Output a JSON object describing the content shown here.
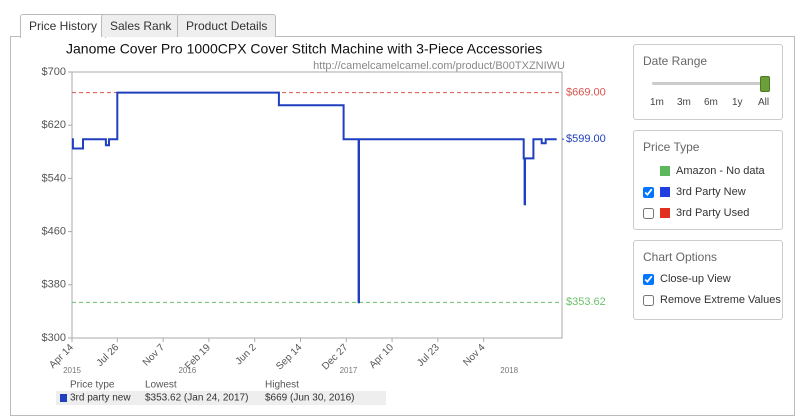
{
  "tabs": [
    "Price History",
    "Sales Rank",
    "Product Details"
  ],
  "chart_data": {
    "type": "line",
    "title": "Janome Cover Pro 1000CPX Cover Stitch Machine with 3-Piece Accessories",
    "subtitle": "http://camelcamelcamel.com/product/B00TXZNIWU",
    "xlim": [
      "2015-04-14",
      "2018-05-01"
    ],
    "xticks": [
      {
        "value": "2015-04-14",
        "label": "Apr 14"
      },
      {
        "value": "2015-07-26",
        "label": "Jul 26"
      },
      {
        "value": "2015-11-07",
        "label": "Nov 7"
      },
      {
        "value": "2016-02-19",
        "label": "Feb 19"
      },
      {
        "value": "2016-06-02",
        "label": "Jun 2"
      },
      {
        "value": "2016-09-14",
        "label": "Sep 14"
      },
      {
        "value": "2016-12-27",
        "label": "Dec 27"
      },
      {
        "value": "2017-04-10",
        "label": "Apr 10"
      },
      {
        "value": "2017-07-23",
        "label": "Jul 23"
      },
      {
        "value": "2017-11-04",
        "label": "Nov 4"
      }
    ],
    "year_labels": [
      {
        "value": "2015-04-14",
        "label": "2015"
      },
      {
        "value": "2016-01-01",
        "label": "2016"
      },
      {
        "value": "2017-01-01",
        "label": "2017"
      },
      {
        "value": "2018-01-01",
        "label": "2018"
      }
    ],
    "ylim": [
      300,
      700
    ],
    "yticks": [
      {
        "value": 700,
        "label": "$700"
      },
      {
        "value": 620,
        "label": "$620"
      },
      {
        "value": 540,
        "label": "$540"
      },
      {
        "value": 460,
        "label": "$460"
      },
      {
        "value": 380,
        "label": "$380"
      },
      {
        "value": 300,
        "label": "$300"
      }
    ],
    "reference_lines": [
      {
        "value": 669,
        "label": "$669.00",
        "color": "#d9534f"
      },
      {
        "value": 599,
        "label": "$599.00",
        "color": "#1f3fbf"
      },
      {
        "value": 353.62,
        "label": "$353.62",
        "color": "#6cc06c"
      }
    ],
    "series": [
      {
        "name": "3rd party new",
        "color": "#1f3fbf",
        "x": [
          "2015-04-14",
          "2015-04-16",
          "2015-04-16",
          "2015-05-09",
          "2015-05-09",
          "2015-06-30",
          "2015-06-30",
          "2015-07-07",
          "2015-07-07",
          "2015-07-26",
          "2015-07-26",
          "2016-07-27",
          "2016-07-27",
          "2016-12-21",
          "2016-12-21",
          "2017-01-24",
          "2017-01-24",
          "2017-01-25",
          "2017-01-25",
          "2018-02-03",
          "2018-02-03",
          "2018-02-05",
          "2018-02-05",
          "2018-02-06",
          "2018-02-06",
          "2018-02-25",
          "2018-02-25",
          "2018-03-16",
          "2018-03-16",
          "2018-03-25",
          "2018-03-25",
          "2018-04-19"
        ],
        "values": [
          599,
          599,
          585,
          585,
          599,
          599,
          590,
          590,
          599,
          599,
          669,
          669,
          650,
          650,
          599,
          599,
          353.62,
          353.62,
          599,
          599,
          570,
          570,
          501,
          501,
          570,
          570,
          599,
          599,
          593,
          593,
          599,
          599
        ]
      }
    ],
    "summary": {
      "headers": [
        "Price type",
        "Lowest",
        "Highest"
      ],
      "row": [
        "3rd party new",
        "$353.62 (Jan 24, 2017)",
        "$669 (Jun 30, 2016)"
      ]
    }
  },
  "sidebar": {
    "date_range": {
      "title": "Date Range",
      "options": [
        "1m",
        "3m",
        "6m",
        "1y",
        "All"
      ],
      "selected": 4
    },
    "price_type": {
      "title": "Price Type",
      "items": [
        {
          "label": "Amazon - No data",
          "color": "#5cb85c",
          "checkbox": false,
          "checked": false
        },
        {
          "label": "3rd Party New",
          "color": "#1f3fe0",
          "checkbox": true,
          "checked": true
        },
        {
          "label": "3rd Party Used",
          "color": "#e03020",
          "checkbox": true,
          "checked": false
        }
      ]
    },
    "chart_options": {
      "title": "Chart Options",
      "items": [
        {
          "label": "Close-up View",
          "checked": true
        },
        {
          "label": "Remove Extreme Values",
          "checked": false
        }
      ]
    }
  }
}
